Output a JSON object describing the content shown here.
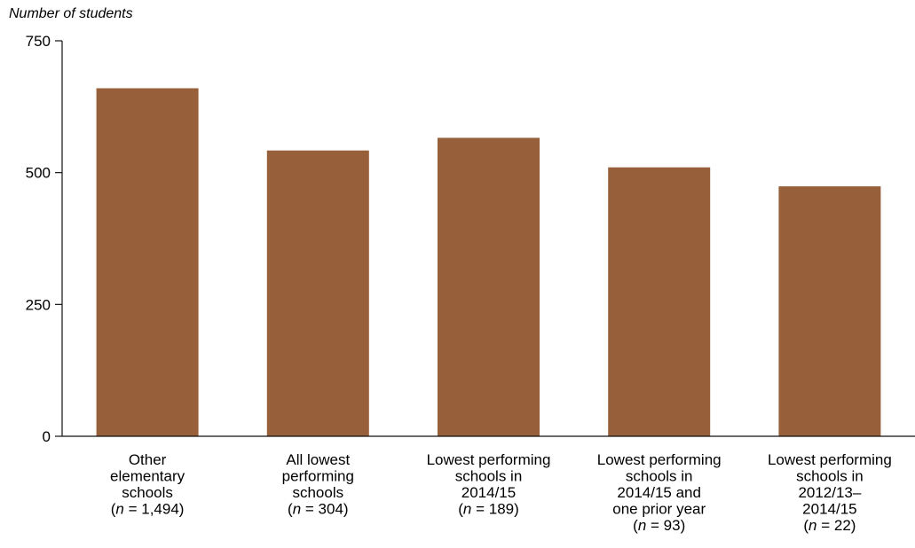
{
  "chart_data": {
    "type": "bar",
    "ylabel": "Number of students",
    "xlabel": "",
    "ylim": [
      0,
      750
    ],
    "yticks": [
      0,
      250,
      500,
      750
    ],
    "grid": false,
    "bar_color": "#98603A",
    "categories": [
      "Other elementary schools (n = 1,494)",
      "All lowest performing schools (n = 304)",
      "Lowest performing schools in 2014/15 (n = 189)",
      "Lowest performing schools in 2014/15 and one prior year (n = 93)",
      "Lowest performing schools in 2012/13–2014/15 (n = 22)"
    ],
    "category_lines": [
      [
        "Other",
        "elementary",
        "schools",
        "(n = 1,494)"
      ],
      [
        "All lowest",
        "performing",
        "schools",
        "(n = 304)"
      ],
      [
        "Lowest performing",
        "schools in",
        "2014/15",
        "(n = 189)"
      ],
      [
        "Lowest performing",
        "schools in",
        "2014/15 and",
        "one prior year",
        "(n = 93)"
      ],
      [
        "Lowest performing",
        "schools in",
        "2012/13–",
        "2014/15",
        "(n = 22)"
      ]
    ],
    "values": [
      660,
      542,
      566,
      510,
      474
    ]
  }
}
